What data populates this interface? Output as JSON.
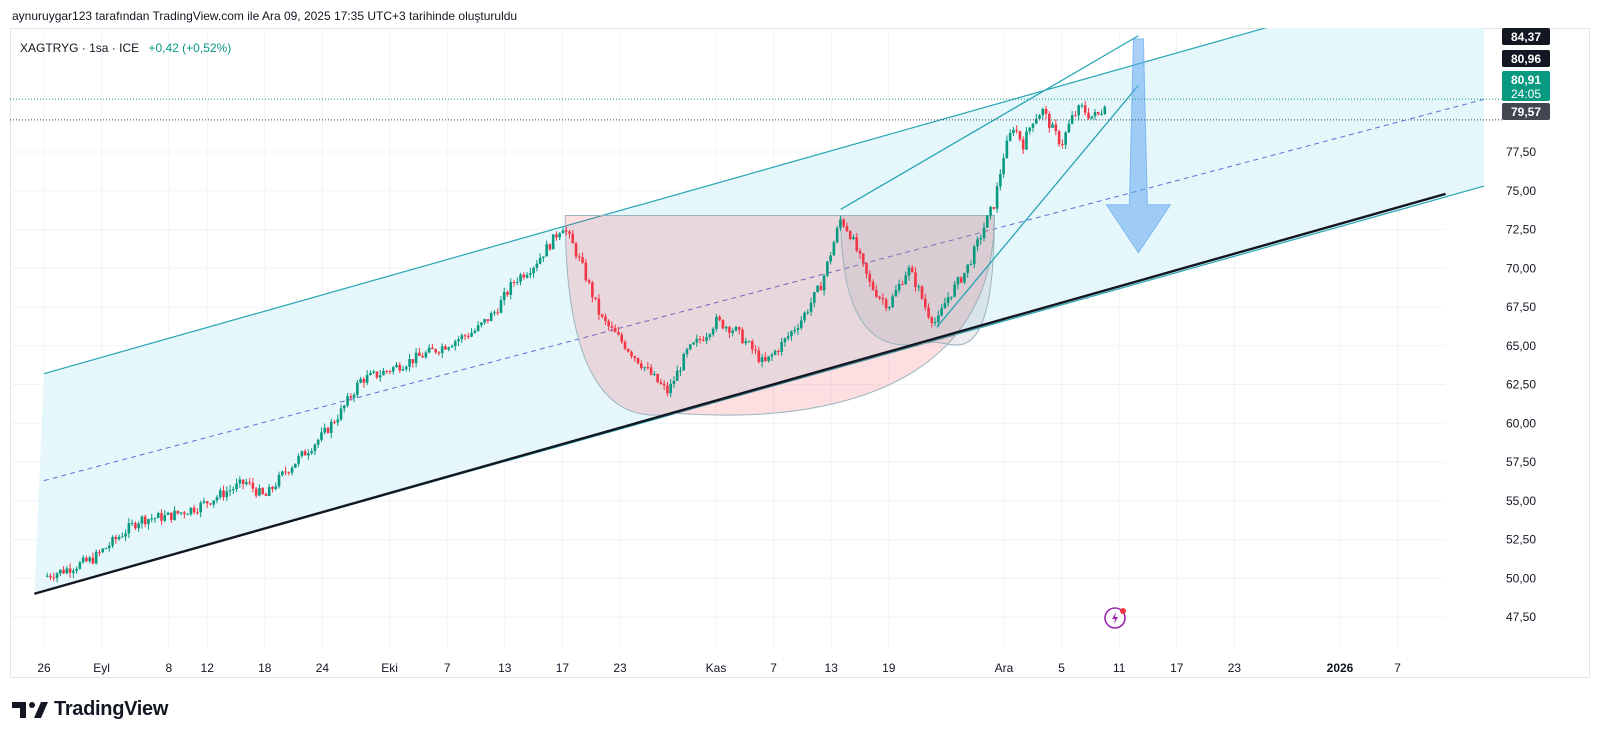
{
  "header": {
    "text": "aynuruygar123 tarafından TradingView.com ile Ara 09, 2025 17:35 UTC+3 tarihinde oluşturuldu"
  },
  "legend": {
    "symbol": "XAGTRYG · 1sa · ICE",
    "change": "+0,42 (+0,52%)"
  },
  "brand": {
    "name": "TradingView"
  },
  "colors": {
    "up": "#089981",
    "down": "#f23645",
    "channel_fill": "#e6f7fb",
    "channel_line": "#26a5b3",
    "arrow": "#90caf9"
  },
  "chart_data": {
    "type": "candlestick",
    "symbol": "XAGTRYG",
    "interval": "1sa",
    "exchange": "ICE",
    "ylim": [
      45.5,
      85.5
    ],
    "y_ticks": [
      "47,50",
      "50,00",
      "52,50",
      "55,00",
      "57,50",
      "60,00",
      "62,50",
      "65,00",
      "67,50",
      "70,00",
      "72,50",
      "75,00",
      "77,50"
    ],
    "x_ticks": [
      {
        "label": "26",
        "day": 0
      },
      {
        "label": "Eyl",
        "day": 6
      },
      {
        "label": "8",
        "day": 13
      },
      {
        "label": "12",
        "day": 17
      },
      {
        "label": "18",
        "day": 23
      },
      {
        "label": "24",
        "day": 29
      },
      {
        "label": "Eki",
        "day": 36
      },
      {
        "label": "7",
        "day": 42
      },
      {
        "label": "13",
        "day": 48
      },
      {
        "label": "17",
        "day": 54
      },
      {
        "label": "23",
        "day": 60
      },
      {
        "label": "Kas",
        "day": 70
      },
      {
        "label": "7",
        "day": 76
      },
      {
        "label": "13",
        "day": 82
      },
      {
        "label": "19",
        "day": 88
      },
      {
        "label": "Ara",
        "day": 100
      },
      {
        "label": "5",
        "day": 106
      },
      {
        "label": "11",
        "day": 112
      },
      {
        "label": "17",
        "day": 118
      },
      {
        "label": "23",
        "day": 124
      },
      {
        "label": "2026",
        "day": 135
      },
      {
        "label": "7",
        "day": 141
      }
    ],
    "price_path": [
      [
        0,
        50.1
      ],
      [
        2,
        50.5
      ],
      [
        5,
        51.2
      ],
      [
        8,
        52.8
      ],
      [
        10,
        53.8
      ],
      [
        13,
        54.0
      ],
      [
        16,
        54.6
      ],
      [
        19,
        55.6
      ],
      [
        21,
        56.2
      ],
      [
        23,
        55.2
      ],
      [
        25,
        56.8
      ],
      [
        27,
        58.0
      ],
      [
        29,
        59.2
      ],
      [
        31,
        60.8
      ],
      [
        33,
        62.8
      ],
      [
        35,
        63.2
      ],
      [
        38,
        64.0
      ],
      [
        41,
        64.8
      ],
      [
        43,
        65.4
      ],
      [
        45,
        66.0
      ],
      [
        47,
        67.2
      ],
      [
        49,
        69.2
      ],
      [
        51,
        70.2
      ],
      [
        53,
        71.8
      ],
      [
        54,
        72.8
      ],
      [
        55,
        71.6
      ],
      [
        56,
        70.2
      ],
      [
        58,
        66.8
      ],
      [
        60,
        65.4
      ],
      [
        62,
        64.0
      ],
      [
        64,
        62.6
      ],
      [
        65,
        62.0
      ],
      [
        67,
        64.6
      ],
      [
        69,
        65.8
      ],
      [
        70,
        66.6
      ],
      [
        72,
        66.0
      ],
      [
        74,
        64.6
      ],
      [
        75,
        63.8
      ],
      [
        77,
        65.2
      ],
      [
        79,
        66.8
      ],
      [
        81,
        69.0
      ],
      [
        83,
        73.2
      ],
      [
        84,
        72.2
      ],
      [
        85,
        70.6
      ],
      [
        86,
        69.0
      ],
      [
        87,
        68.2
      ],
      [
        88,
        67.6
      ],
      [
        90,
        70.0
      ],
      [
        91,
        68.8
      ],
      [
        92,
        67.2
      ],
      [
        93,
        66.4
      ],
      [
        94,
        68.0
      ],
      [
        96,
        69.8
      ],
      [
        97,
        71.2
      ],
      [
        98,
        72.8
      ],
      [
        99,
        74.2
      ],
      [
        100,
        77.4
      ],
      [
        101,
        79.2
      ],
      [
        102,
        78.0
      ],
      [
        103,
        79.6
      ],
      [
        104,
        80.2
      ],
      [
        105,
        79.0
      ],
      [
        106,
        78.0
      ],
      [
        107,
        79.6
      ],
      [
        108,
        80.4
      ],
      [
        109,
        79.8
      ],
      [
        110,
        79.9
      ],
      [
        110.6,
        80.91
      ]
    ],
    "last": 80.91,
    "countdown": "24:05",
    "price_labels": [
      {
        "value": 84.37,
        "text": "84,37",
        "bg": "#131722",
        "fg": "#ffffff"
      },
      {
        "value": 80.96,
        "text": "80,96",
        "bg": "#131722",
        "fg": "#ffffff"
      },
      {
        "value": 80.91,
        "text": "80,91",
        "bg": "#089981",
        "fg": "#ffffff"
      },
      {
        "value": 79.57,
        "text": "79,57",
        "bg": "#434651",
        "fg": "#ffffff"
      }
    ],
    "drawings": {
      "channel": {
        "lower": [
          [
            -1,
            49.0
          ],
          [
            150,
            75.3
          ]
        ],
        "upper": [
          [
            0,
            63.2
          ],
          [
            150,
            89.5
          ]
        ],
        "mid": [
          [
            0,
            56.3
          ],
          [
            150,
            80.9
          ]
        ]
      },
      "support_line": [
        [
          -1,
          49.0
        ],
        [
          146,
          74.8
        ]
      ],
      "cup1": {
        "left": [
          54.3,
          73.4
        ],
        "right": [
          99,
          73.4
        ],
        "bottom": [
          66,
          61.4
        ]
      },
      "cup2": {
        "left": [
          83,
          73.4
        ],
        "right": [
          99,
          73.4
        ],
        "bottom": [
          92.8,
          66.0
        ]
      },
      "wedge_upper": [
        [
          83,
          73.8
        ],
        [
          114,
          85.0
        ]
      ],
      "wedge_lower": [
        [
          93,
          66.2
        ],
        [
          114,
          81.8
        ]
      ],
      "arrow": {
        "x": 114,
        "from": 84.8,
        "to": 71.0
      }
    }
  }
}
